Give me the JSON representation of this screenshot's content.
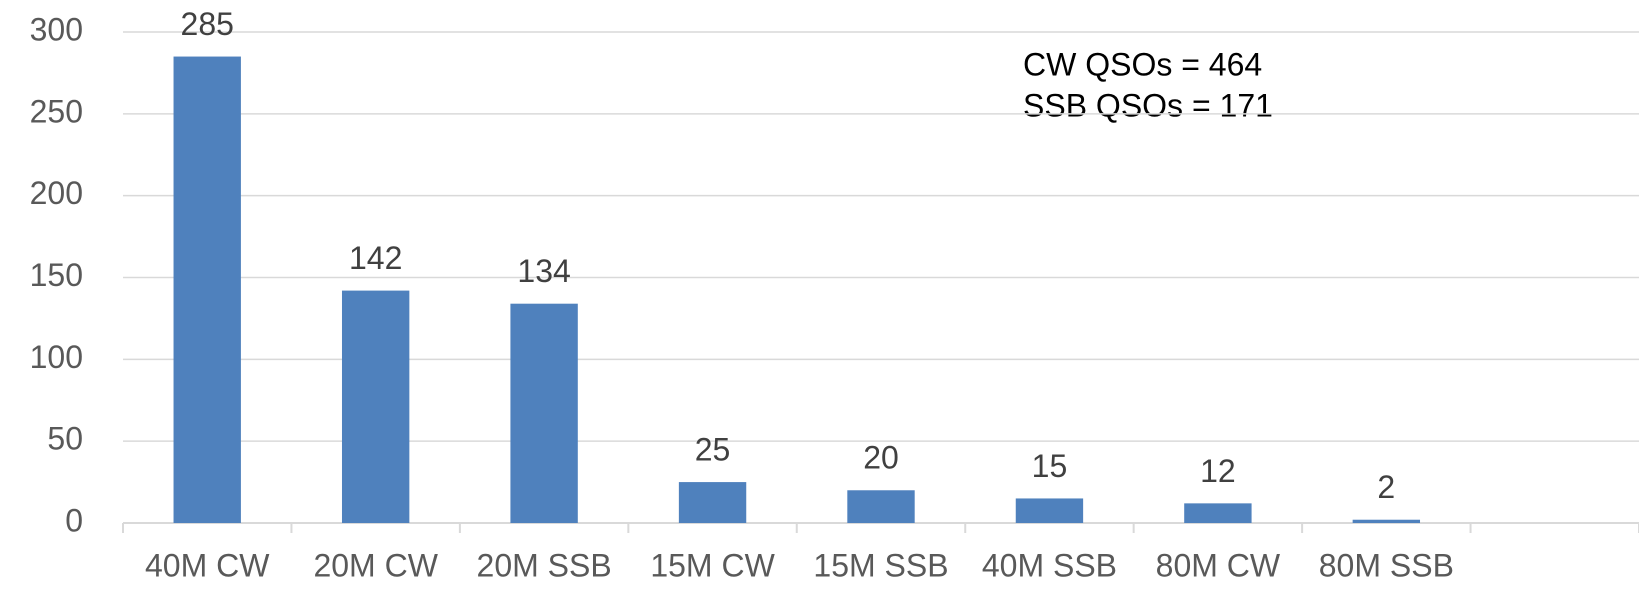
{
  "chart_data": {
    "type": "bar",
    "categories": [
      "40M CW",
      "20M CW",
      "20M SSB",
      "15M CW",
      "15M SSB",
      "40M SSB",
      "80M CW",
      "80M SSB",
      null
    ],
    "values": [
      285,
      142,
      134,
      25,
      20,
      15,
      12,
      2,
      null
    ],
    "color": "#4f81bd",
    "ylim": [
      0,
      300
    ],
    "yticks": [
      0,
      50,
      100,
      150,
      200,
      250,
      300
    ],
    "grid": true,
    "annotations": [
      "CW QSOs = 464",
      "SSB QSOs = 171"
    ]
  }
}
